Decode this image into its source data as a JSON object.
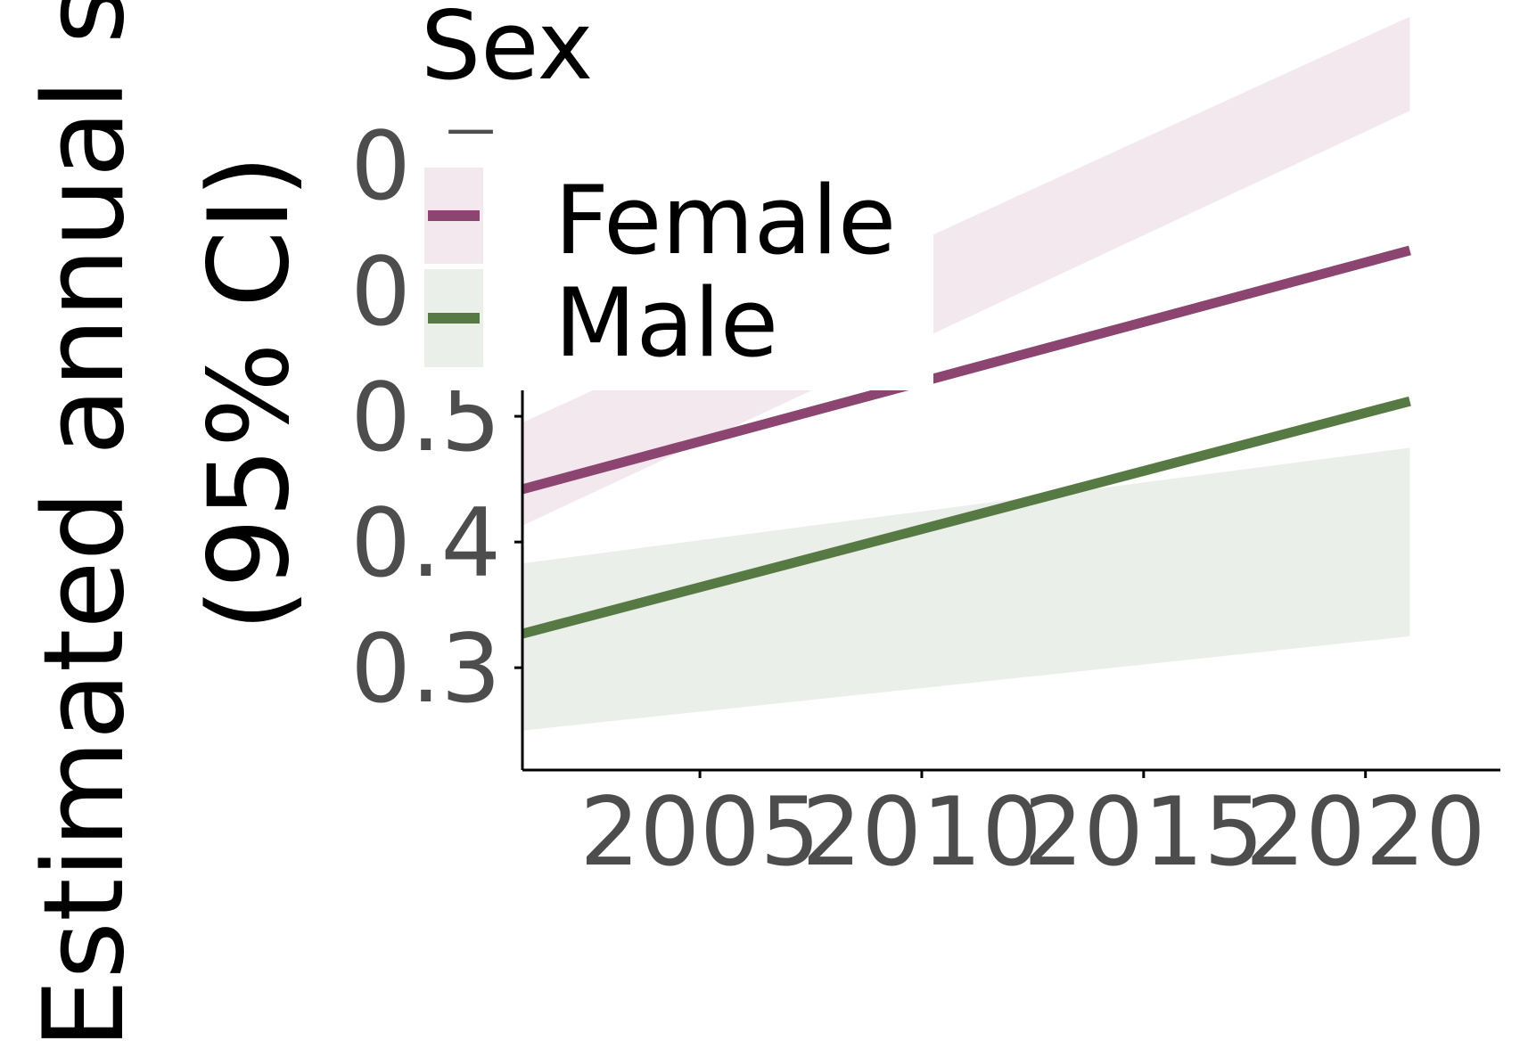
{
  "chart_data": {
    "type": "line",
    "title": "",
    "ylabel_lines": [
      "Estimated annual s",
      "(95% CI)"
    ],
    "xlabel": "",
    "xlim": [
      2001,
      2023
    ],
    "ylim": [
      0.22,
      0.8
    ],
    "x_ticks": [
      2005,
      2010,
      2015,
      2020
    ],
    "x_tick_labels": [
      "2005",
      "2010",
      "2015",
      "2020"
    ],
    "y_ticks": [
      0.3,
      0.4,
      0.5,
      0.6,
      0.7
    ],
    "y_tick_labels": [
      "0.3",
      "0.4",
      "0.5",
      "0.6",
      "0.7"
    ],
    "grid": false,
    "legend": {
      "title": "Sex",
      "placement": "top-left",
      "entries": [
        "Female",
        "Male"
      ]
    },
    "series": [
      {
        "name": "Female",
        "color": "#8b4570",
        "ribbon_color": "#f3e8ee",
        "x": [
          2001,
          2021
        ],
        "y": [
          0.442,
          0.632
        ],
        "ci_lower": [
          0.413,
          0.743
        ],
        "ci_upper": [
          0.495,
          0.818
        ]
      },
      {
        "name": "Male",
        "color": "#577a45",
        "ribbon_color": "#ebefea",
        "x": [
          2001,
          2021
        ],
        "y": [
          0.327,
          0.512
        ],
        "ci_lower": [
          0.25,
          0.325
        ],
        "ci_upper": [
          0.383,
          0.475
        ]
      }
    ],
    "overlap_color": "#e0dfdf"
  }
}
